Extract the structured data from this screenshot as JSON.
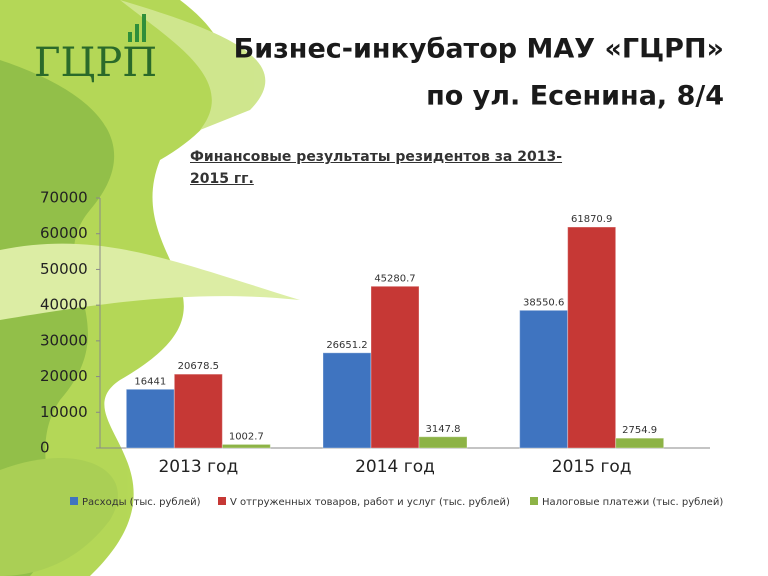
{
  "logo": "ГЦРП",
  "header": {
    "title": "Бизнес-инкубатор МАУ «ГЦРП»",
    "subtitle": "по ул. Есенина, 8/4"
  },
  "chart_data": {
    "type": "bar",
    "title": "Финансовые результаты резидентов за 2013-2015 гг.",
    "categories": [
      "2013 год",
      "2014 год",
      "2015 год"
    ],
    "series": [
      {
        "name": "Расходы (тыс. рублей)",
        "color": "#3f74c0",
        "values": [
          16441,
          26651.2,
          38550.6
        ]
      },
      {
        "name": "V отгруженных товаров, работ и услуг (тыс. рублей)",
        "color": "#c63835",
        "values": [
          20678.5,
          45280.7,
          61870.9
        ]
      },
      {
        "name": "Налоговые платежи (тыс. рублей)",
        "color": "#8db346",
        "values": [
          1002.7,
          3147.8,
          2754.9
        ]
      }
    ],
    "ylim": [
      0,
      70000
    ],
    "yticks": [
      0,
      10000,
      20000,
      30000,
      40000,
      50000,
      60000,
      70000
    ],
    "legend": "bottom"
  }
}
